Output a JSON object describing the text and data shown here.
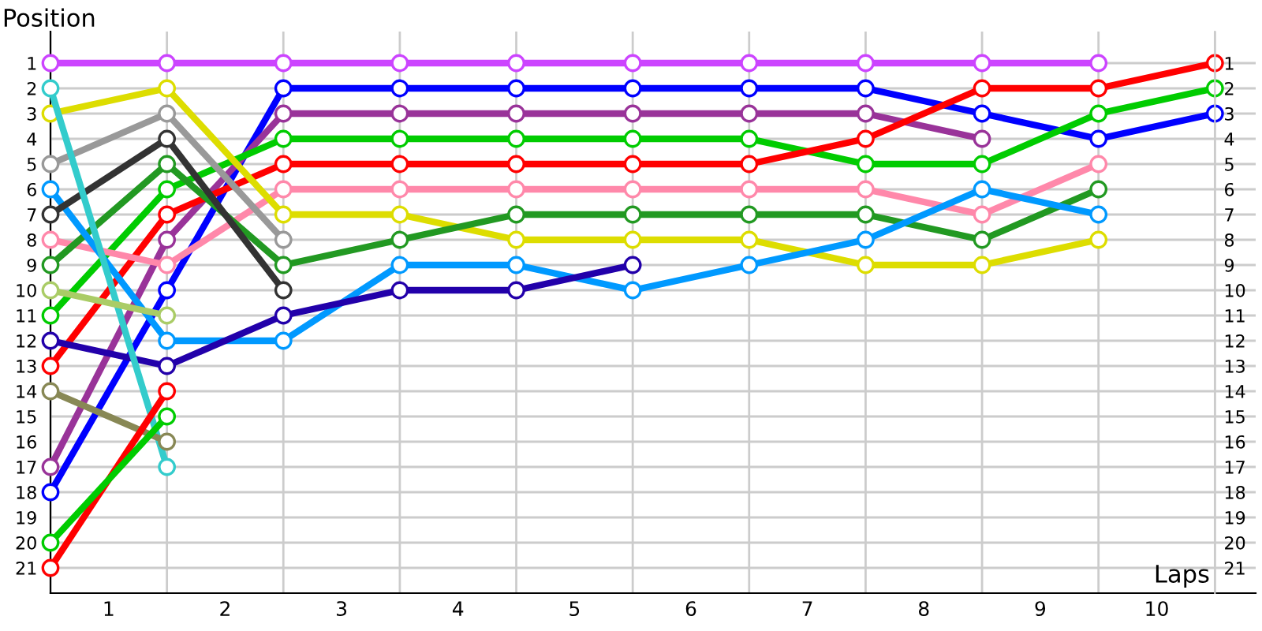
{
  "chart_data": {
    "type": "line",
    "xlabel": "Laps",
    "ylabel": "Position",
    "x": [
      0,
      1,
      2,
      3,
      4,
      5,
      6,
      7,
      8,
      9,
      10
    ],
    "xlim": [
      0,
      10.35
    ],
    "xticks": [
      {
        "value": 0,
        "label": null
      },
      {
        "value": 0.5,
        "label": "1"
      },
      {
        "value": 1,
        "label": null
      },
      {
        "value": 1.5,
        "label": "2"
      },
      {
        "value": 2,
        "label": null
      },
      {
        "value": 2.5,
        "label": "3"
      },
      {
        "value": 3,
        "label": null
      },
      {
        "value": 3.5,
        "label": "4"
      },
      {
        "value": 4,
        "label": null
      },
      {
        "value": 4.5,
        "label": "5"
      },
      {
        "value": 5,
        "label": null
      },
      {
        "value": 5.5,
        "label": "6"
      },
      {
        "value": 6,
        "label": null
      },
      {
        "value": 6.5,
        "label": "7"
      },
      {
        "value": 7,
        "label": null
      },
      {
        "value": 7.5,
        "label": "8"
      },
      {
        "value": 8,
        "label": null
      },
      {
        "value": 8.5,
        "label": "9"
      },
      {
        "value": 9,
        "label": null
      },
      {
        "value": 9.5,
        "label": "10"
      },
      {
        "value": 10,
        "label": null
      }
    ],
    "ylim": [
      22,
      -0.25
    ],
    "yticks": [
      1,
      2,
      3,
      4,
      5,
      6,
      7,
      8,
      9,
      10,
      11,
      12,
      13,
      14,
      15,
      16,
      17,
      18,
      19,
      20,
      21
    ],
    "y2lim": [
      22,
      -0.25
    ],
    "y2ticks": [
      1,
      2,
      3,
      4,
      5,
      6,
      7,
      8,
      9,
      10,
      11,
      12,
      13,
      14,
      15,
      16,
      17,
      18,
      19,
      20,
      21
    ],
    "grid": true,
    "marker": "circle",
    "line_style": "solid",
    "legend": false,
    "series": [
      {
        "color": "#cc44ff",
        "values": [
          1,
          1,
          1,
          1,
          1,
          1,
          1,
          1,
          1,
          1,
          null
        ]
      },
      {
        "color": "#0000ff",
        "values": [
          18,
          10,
          2,
          2,
          2,
          2,
          2,
          2,
          3,
          4,
          3
        ]
      },
      {
        "color": "#993399",
        "values": [
          17,
          8,
          3,
          3,
          3,
          3,
          3,
          3,
          4,
          null,
          null
        ]
      },
      {
        "color": "#00cc00",
        "values": [
          11,
          6,
          4,
          4,
          4,
          4,
          4,
          5,
          5,
          3,
          2
        ]
      },
      {
        "color": "#ff0000",
        "values": [
          13,
          7,
          5,
          5,
          5,
          5,
          5,
          4,
          2,
          2,
          1
        ]
      },
      {
        "color": "#ff88aa",
        "values": [
          8,
          9,
          6,
          6,
          6,
          6,
          6,
          6,
          7,
          5,
          null
        ]
      },
      {
        "color": "#dddd00",
        "values": [
          3,
          2,
          7,
          7,
          8,
          8,
          8,
          9,
          9,
          8,
          null
        ]
      },
      {
        "color": "#229922",
        "values": [
          9,
          5,
          9,
          8,
          7,
          7,
          7,
          7,
          8,
          6,
          null
        ]
      },
      {
        "color": "#0099ff",
        "values": [
          6,
          12,
          12,
          9,
          9,
          10,
          9,
          8,
          6,
          7,
          null
        ]
      },
      {
        "color": "#2200aa",
        "values": [
          12,
          13,
          11,
          10,
          10,
          9,
          null,
          null,
          null,
          null,
          null
        ]
      },
      {
        "color": "#999999",
        "values": [
          5,
          3,
          8,
          null,
          null,
          null,
          null,
          null,
          null,
          null,
          null
        ]
      },
      {
        "color": "#333333",
        "values": [
          7,
          4,
          10,
          null,
          null,
          null,
          null,
          null,
          null,
          null,
          null
        ]
      },
      {
        "color": "#33cccc",
        "values": [
          2,
          17,
          null,
          null,
          null,
          null,
          null,
          null,
          null,
          null,
          null
        ]
      },
      {
        "color": "#aacc66",
        "values": [
          10,
          11,
          null,
          null,
          null,
          null,
          null,
          null,
          null,
          null,
          null
        ]
      },
      {
        "color": "#888855",
        "values": [
          14,
          16,
          null,
          null,
          null,
          null,
          null,
          null,
          null,
          null,
          null
        ]
      },
      {
        "color": "#ff0000",
        "values": [
          21,
          14,
          null,
          null,
          null,
          null,
          null,
          null,
          null,
          null,
          null
        ]
      },
      {
        "color": "#00cc00",
        "values": [
          20,
          15,
          null,
          null,
          null,
          null,
          null,
          null,
          null,
          null,
          null
        ]
      }
    ]
  }
}
